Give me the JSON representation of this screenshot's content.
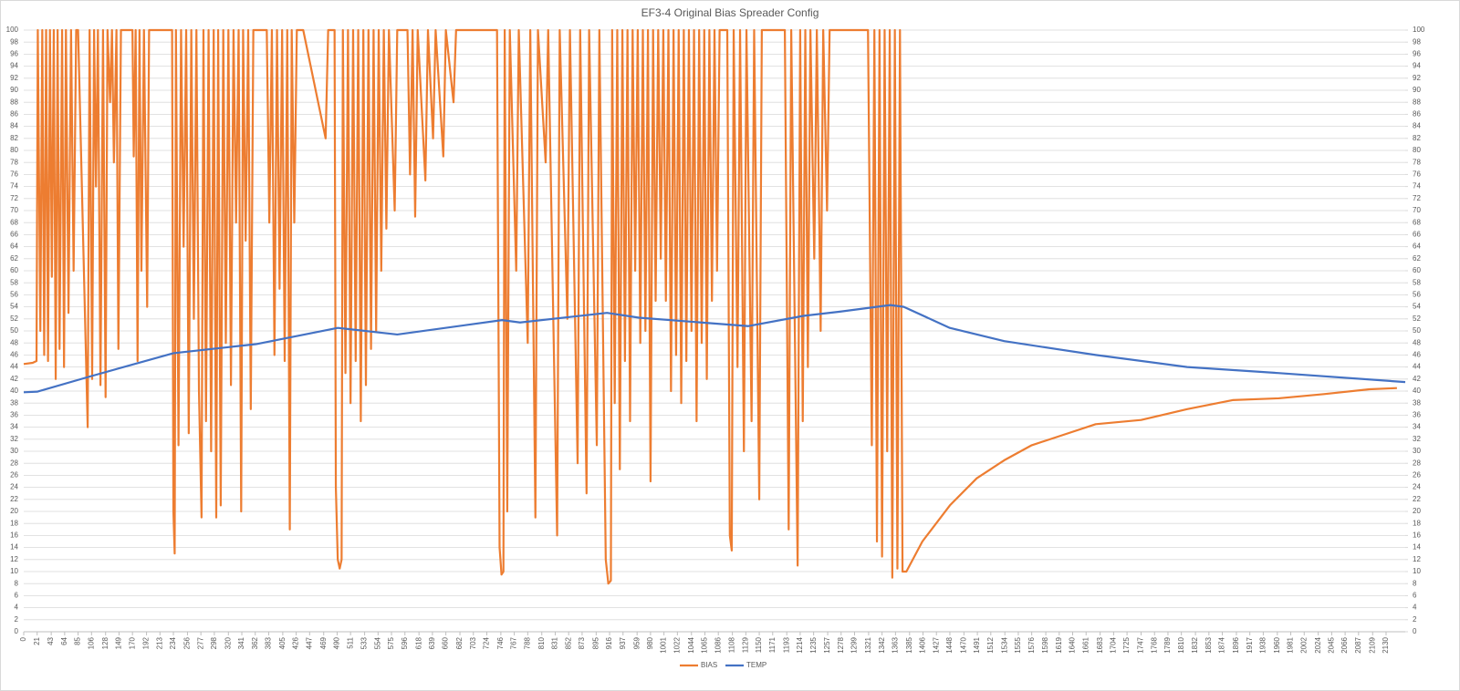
{
  "chart_data": {
    "type": "line",
    "title": "EF3-4 Original Bias Spreader Config",
    "xlim": [
      0,
      2160
    ],
    "xticks": [
      0,
      21,
      43,
      64,
      85,
      106,
      128,
      149,
      170,
      192,
      213,
      234,
      256,
      277,
      298,
      320,
      341,
      362,
      383,
      405,
      426,
      447,
      469,
      490,
      511,
      533,
      554,
      575,
      596,
      618,
      639,
      660,
      682,
      703,
      724,
      746,
      767,
      788,
      810,
      831,
      852,
      873,
      895,
      916,
      937,
      959,
      980,
      1001,
      1022,
      1044,
      1065,
      1086,
      1108,
      1129,
      1150,
      1171,
      1193,
      1214,
      1235,
      1257,
      1278,
      1299,
      1321,
      1342,
      1363,
      1385,
      1406,
      1427,
      1448,
      1470,
      1491,
      1512,
      1534,
      1555,
      1576,
      1598,
      1619,
      1640,
      1661,
      1683,
      1704,
      1725,
      1747,
      1768,
      1789,
      1810,
      1832,
      1853,
      1874,
      1896,
      1917,
      1938,
      1960,
      1981,
      2002,
      2024,
      2045,
      2066,
      2087,
      2109,
      2130
    ],
    "ylim": [
      0,
      100
    ],
    "yticks": [
      0,
      2,
      4,
      6,
      8,
      10,
      12,
      14,
      16,
      18,
      20,
      22,
      24,
      26,
      28,
      30,
      32,
      34,
      36,
      38,
      40,
      42,
      44,
      46,
      48,
      50,
      52,
      54,
      56,
      58,
      60,
      62,
      64,
      66,
      68,
      70,
      72,
      74,
      76,
      78,
      80,
      82,
      84,
      86,
      88,
      90,
      92,
      94,
      96,
      98,
      100
    ],
    "y2lim": [
      0,
      100
    ],
    "y2ticks": [
      0,
      2,
      4,
      6,
      8,
      10,
      12,
      14,
      16,
      18,
      20,
      22,
      24,
      26,
      28,
      30,
      32,
      34,
      36,
      38,
      40,
      42,
      44,
      46,
      48,
      50,
      52,
      54,
      56,
      58,
      60,
      62,
      64,
      66,
      68,
      70,
      72,
      74,
      76,
      78,
      80,
      82,
      84,
      86,
      88,
      90,
      92,
      94,
      96,
      98,
      100
    ],
    "grid": true,
    "legend": "bottom",
    "series": [
      {
        "name": "BIAS",
        "color": "#ed7d31",
        "x": [
          0,
          14,
          20,
          22,
          26,
          29,
          32,
          35,
          38,
          41,
          44,
          47,
          50,
          53,
          56,
          60,
          63,
          66,
          70,
          74,
          78,
          82,
          85,
          100,
          103,
          107,
          110,
          113,
          116,
          120,
          124,
          128,
          131,
          135,
          138,
          141,
          145,
          148,
          152,
          170,
          172,
          175,
          178,
          181,
          184,
          188,
          193,
          196,
          232,
          234,
          236,
          238,
          242,
          246,
          250,
          254,
          258,
          262,
          266,
          270,
          274,
          278,
          281,
          285,
          289,
          293,
          297,
          301,
          304,
          308,
          312,
          316,
          320,
          324,
          328,
          332,
          336,
          340,
          343,
          347,
          351,
          355,
          359,
          380,
          384,
          388,
          392,
          396,
          400,
          404,
          408,
          412,
          416,
          419,
          423,
          427,
          437,
          472,
          476,
          486,
          488,
          491,
          494,
          497,
          499,
          503,
          507,
          511,
          515,
          519,
          523,
          527,
          531,
          535,
          539,
          543,
          547,
          551,
          555,
          559,
          563,
          567,
          571,
          580,
          584,
          600,
          604,
          608,
          612,
          616,
          628,
          632,
          640,
          644,
          656,
          660,
          672,
          676,
          740,
          744,
          747,
          750,
          752,
          756,
          760,
          770,
          774,
          788,
          792,
          800,
          804,
          816,
          820,
          834,
          838,
          850,
          854,
          866,
          870,
          880,
          884,
          896,
          900,
          910,
          914,
          918,
          920,
          924,
          928,
          932,
          936,
          940,
          944,
          948,
          952,
          956,
          960,
          964,
          968,
          972,
          976,
          980,
          984,
          988,
          992,
          996,
          1000,
          1004,
          1008,
          1012,
          1016,
          1020,
          1024,
          1028,
          1032,
          1036,
          1040,
          1044,
          1048,
          1052,
          1056,
          1060,
          1064,
          1068,
          1072,
          1076,
          1080,
          1084,
          1088,
          1100,
          1104,
          1107,
          1110,
          1116,
          1120,
          1126,
          1130,
          1138,
          1142,
          1150,
          1154,
          1190,
          1196,
          1200,
          1210,
          1214,
          1218,
          1222,
          1226,
          1230,
          1236,
          1240,
          1246,
          1250,
          1256,
          1260,
          1320,
          1326,
          1330,
          1334,
          1338,
          1342,
          1346,
          1350,
          1354,
          1358,
          1362,
          1366,
          1370,
          1374,
          1380,
          1405,
          1448,
          1490,
          1533,
          1576,
          1619,
          1676,
          1747,
          1819,
          1890,
          1962,
          2033,
          2104,
          2147
        ],
        "values": [
          44.5,
          44.7,
          45,
          100,
          50,
          100,
          46,
          100,
          45,
          100,
          59,
          100,
          42,
          100,
          47,
          100,
          44,
          100,
          53,
          100,
          60,
          100,
          100,
          34,
          100,
          42,
          100,
          74,
          100,
          41,
          100,
          39,
          100,
          88,
          100,
          78,
          100,
          47,
          100,
          100,
          79,
          100,
          45,
          100,
          60,
          100,
          54,
          100,
          100,
          20,
          13,
          100,
          31,
          100,
          64,
          100,
          33,
          100,
          52,
          100,
          40,
          19,
          100,
          35,
          100,
          30,
          100,
          19,
          100,
          21,
          100,
          48,
          100,
          41,
          100,
          68,
          100,
          20,
          100,
          65,
          100,
          37,
          100,
          100,
          68,
          100,
          46,
          100,
          57,
          100,
          45,
          100,
          17,
          100,
          68,
          100,
          100,
          82,
          100,
          100,
          24,
          12,
          10.5,
          12,
          100,
          43,
          100,
          38,
          100,
          45,
          100,
          35,
          100,
          41,
          100,
          47,
          100,
          50,
          100,
          60,
          100,
          67,
          100,
          70,
          100,
          100,
          76,
          100,
          69,
          100,
          75,
          100,
          82,
          100,
          79,
          100,
          88,
          100,
          100,
          14,
          9.5,
          10,
          100,
          20,
          100,
          60,
          100,
          48,
          100,
          19,
          100,
          78,
          100,
          16,
          100,
          52,
          100,
          28,
          100,
          23,
          100,
          31,
          100,
          12,
          8,
          8.5,
          100,
          38,
          100,
          27,
          100,
          45,
          100,
          35,
          100,
          60,
          100,
          48,
          100,
          50,
          100,
          25,
          100,
          55,
          100,
          62,
          100,
          55,
          100,
          40,
          100,
          46,
          100,
          38,
          100,
          45,
          100,
          50,
          100,
          35,
          100,
          48,
          100,
          42,
          100,
          55,
          100,
          60,
          100,
          100,
          16,
          13.5,
          100,
          44,
          100,
          30,
          100,
          35,
          100,
          22,
          100,
          100,
          17,
          100,
          11,
          100,
          35,
          100,
          44,
          100,
          62,
          100,
          50,
          100,
          70,
          100,
          100,
          31,
          100,
          15,
          100,
          12.5,
          100,
          30,
          100,
          9,
          100,
          10.5,
          100,
          10,
          10,
          15,
          21,
          25.5,
          28.5,
          31,
          32.5,
          34.5,
          35.2,
          37,
          38.5,
          38.8,
          39.5,
          40.3,
          40.5
        ]
      },
      {
        "name": "TEMP",
        "color": "#4472c4",
        "axis": "y2",
        "x": [
          0,
          21,
          106,
          234,
          363,
          491,
          584,
          748,
          776,
          912,
          962,
          1133,
          1219,
          1276,
          1355,
          1376,
          1448,
          1533,
          1676,
          1819,
          1961,
          2160
        ],
        "values": [
          39.8,
          39.9,
          42.5,
          46.3,
          47.8,
          50.5,
          49.4,
          51.8,
          51.4,
          53,
          52.2,
          50.8,
          52.5,
          53.2,
          54.3,
          54,
          50.5,
          48.3,
          46,
          44,
          43,
          41.5
        ]
      }
    ]
  }
}
